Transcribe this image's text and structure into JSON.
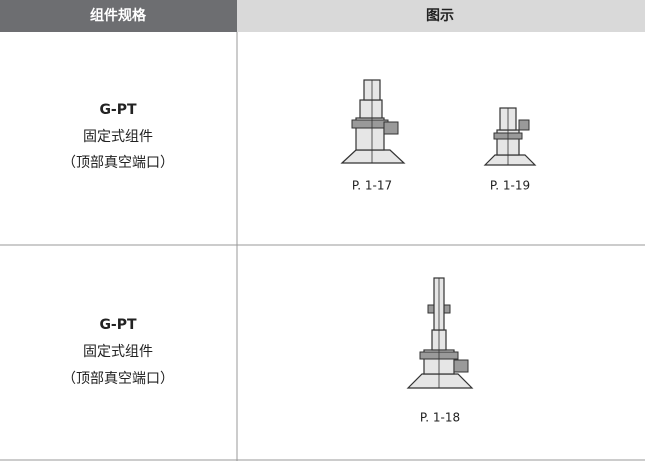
{
  "header": {
    "spec": "组件规格",
    "figure": "图示"
  },
  "rows": [
    {
      "name": "G-PT",
      "desc": "固定式组件",
      "port": "（顶部真空端口）",
      "captions": [
        "P. 1-17",
        "P. 1-19"
      ]
    },
    {
      "name": "G-PT",
      "desc": "固定式组件",
      "port": "（顶部真空端口）",
      "captions": [
        "P. 1-18"
      ]
    }
  ]
}
